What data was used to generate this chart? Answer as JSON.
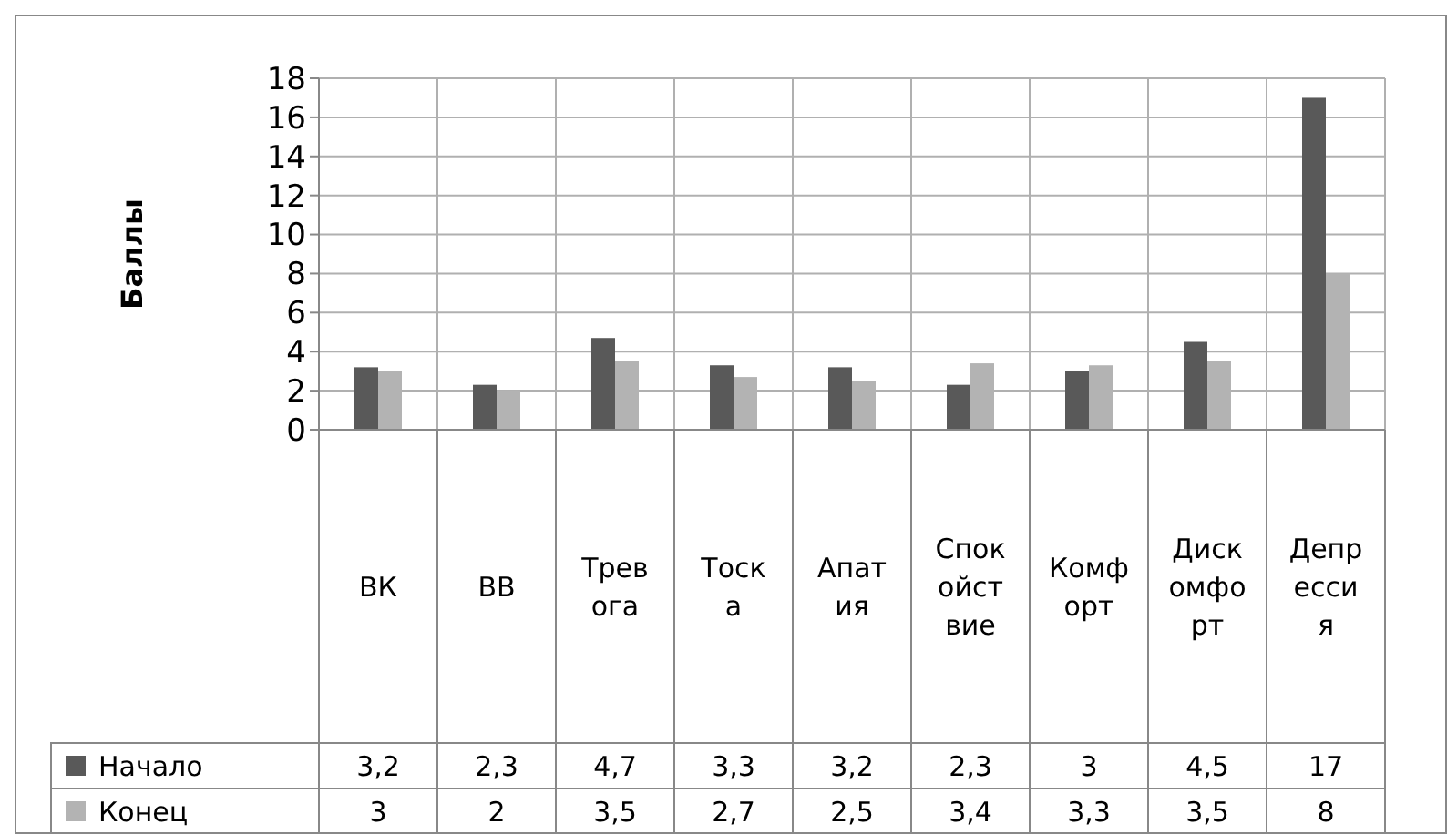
{
  "chart_data": {
    "type": "bar",
    "ylabel": "Баллы",
    "categories": [
      "ВК",
      "ВВ",
      "Тревога",
      "Тоска",
      "Апатия",
      "Спокойствие",
      "Комфорт",
      "Дискомфорт",
      "Депрессия"
    ],
    "series": [
      {
        "name": "Начало",
        "color": "#595959",
        "values": [
          3.2,
          2.3,
          4.7,
          3.3,
          3.2,
          2.3,
          3,
          4.5,
          17
        ],
        "value_labels": [
          "3,2",
          "2,3",
          "4,7",
          "3,3",
          "3,2",
          "2,3",
          "3",
          "4,5",
          "17"
        ]
      },
      {
        "name": "Конец",
        "color": "#b3b3b3",
        "values": [
          3,
          2,
          3.5,
          2.7,
          2.5,
          3.4,
          3.3,
          3.5,
          8
        ],
        "value_labels": [
          "3",
          "2",
          "3,5",
          "2,7",
          "2,5",
          "3,4",
          "3,3",
          "3,5",
          "8"
        ]
      }
    ],
    "ylim": [
      0,
      18
    ],
    "yticks": [
      0,
      2,
      4,
      6,
      8,
      10,
      12,
      14,
      16,
      18
    ],
    "grid": "y",
    "legend": "left"
  }
}
